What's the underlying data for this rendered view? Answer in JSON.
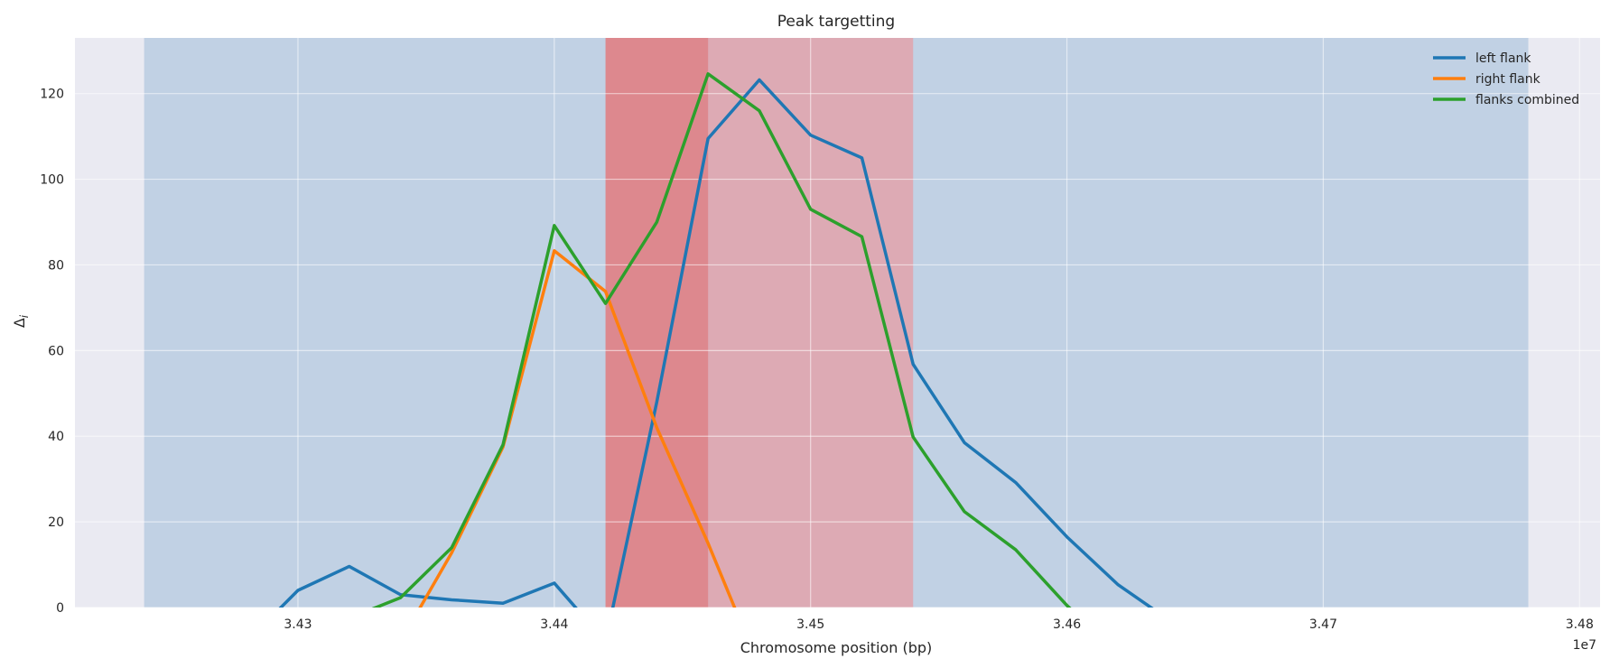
{
  "chart_data": {
    "type": "line",
    "title": "Peak targetting",
    "xlabel": "Chromosome position (bp)",
    "ylabel": "Δ",
    "ylabel_subscript": "i",
    "offset_label": "1e7",
    "xlim": [
      34213000,
      34808000
    ],
    "ylim": [
      0,
      133
    ],
    "xticks": [
      {
        "value": 34300000,
        "label": "3.43"
      },
      {
        "value": 34400000,
        "label": "3.44"
      },
      {
        "value": 34500000,
        "label": "3.45"
      },
      {
        "value": 34600000,
        "label": "3.46"
      },
      {
        "value": 34700000,
        "label": "3.47"
      },
      {
        "value": 34800000,
        "label": "3.48"
      }
    ],
    "yticks": [
      0,
      20,
      40,
      60,
      80,
      100,
      120
    ],
    "grid": true,
    "legend_position": "top-right",
    "spans": [
      {
        "x0": 34240000,
        "x1": 34780000,
        "color": "#9fbbd9",
        "opacity": 0.55
      },
      {
        "x0": 34420000,
        "x1": 34540000,
        "color": "#e89aa0",
        "opacity": 0.7
      },
      {
        "x0": 34420000,
        "x1": 34460000,
        "color": "#dd6b70",
        "opacity": 0.55
      }
    ],
    "series": [
      {
        "name": "left flank",
        "color": "#1f77b4",
        "x": [
          34280000,
          34300000,
          34320000,
          34340000,
          34360000,
          34380000,
          34400000,
          34420000,
          34440000,
          34460000,
          34480000,
          34500000,
          34520000,
          34540000,
          34560000,
          34580000,
          34600000,
          34620000,
          34640000
        ],
        "y": [
          -8,
          4,
          9.6,
          3,
          1.8,
          1,
          5.7,
          -8,
          48,
          109.5,
          123.2,
          110.3,
          105,
          56.8,
          38.5,
          29.2,
          16.5,
          5.3,
          -3
        ]
      },
      {
        "name": "right flank",
        "color": "#ff7f0e",
        "x": [
          34340000,
          34360000,
          34380000,
          34400000,
          34420000,
          34440000,
          34460000,
          34480000
        ],
        "y": [
          -8,
          12.8,
          37.5,
          83.3,
          73.8,
          42,
          15,
          -14
        ]
      },
      {
        "name": "flanks combined",
        "color": "#2ca02c",
        "x": [
          34300000,
          34320000,
          34340000,
          34360000,
          34380000,
          34400000,
          34420000,
          34440000,
          34460000,
          34480000,
          34500000,
          34520000,
          34540000,
          34560000,
          34580000,
          34600000,
          34620000
        ],
        "y": [
          -8,
          -2.5,
          2.3,
          14,
          38,
          89.2,
          71,
          90,
          124.6,
          116,
          93,
          86.6,
          39.8,
          22.4,
          13.5,
          0.5,
          -11
        ]
      }
    ]
  },
  "colors": {
    "plot_background": "#eaeaf2",
    "grid": "#ffffff",
    "text": "#262626"
  }
}
